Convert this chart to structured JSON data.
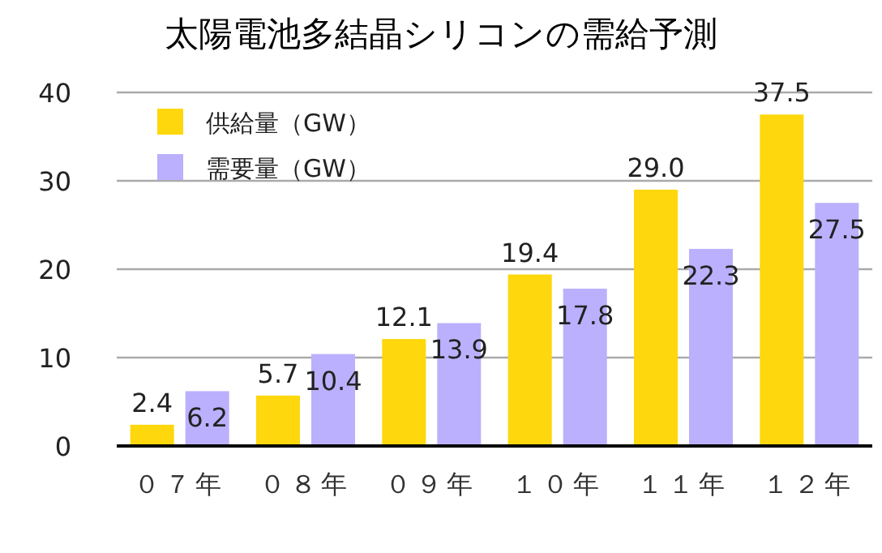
{
  "chart_data": {
    "type": "bar",
    "title": "太陽電池多結晶シリコンの需給予測",
    "categories": [
      "０７年",
      "０８年",
      "０９年",
      "１０年",
      "１１年",
      "１２年"
    ],
    "series": [
      {
        "name": "供給量（GW）",
        "color": "#fed70c",
        "values": [
          2.4,
          5.7,
          12.1,
          19.4,
          29.0,
          37.5
        ],
        "value_labels": [
          "2.4",
          "5.7",
          "12.1",
          "19.4",
          "29.0",
          "37.5"
        ]
      },
      {
        "name": "需要量（GW）",
        "color": "#bab0fd",
        "values": [
          6.2,
          10.4,
          13.9,
          17.8,
          22.3,
          27.5
        ],
        "value_labels": [
          "6.2",
          "10.4",
          "13.9",
          "17.8",
          "22.3",
          "27.5"
        ]
      }
    ],
    "ylim": [
      0,
      40
    ],
    "yticks": [
      0,
      10,
      20,
      30,
      40
    ],
    "grid": "y",
    "legend": "top left"
  }
}
